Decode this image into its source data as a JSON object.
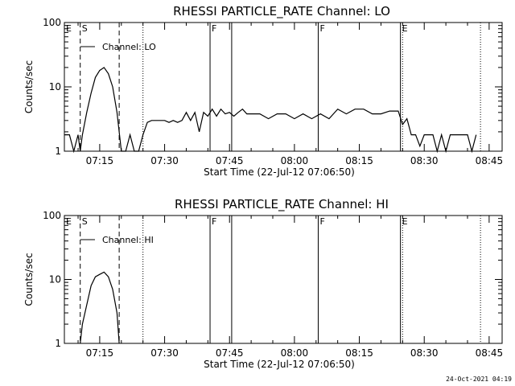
{
  "footer_date": "24-Oct-2021 04:19",
  "chart_data": [
    {
      "type": "line",
      "title": "RHESSI PARTICLE_RATE Channel: LO",
      "xlabel": "Start Time (22-Jul-12 07:06:50)",
      "ylabel": "Counts/sec",
      "yscale": "log",
      "ylim": [
        1,
        100
      ],
      "yticks": [
        "1",
        "10",
        "100"
      ],
      "xlim": [
        "07:06:50",
        "08:48:00"
      ],
      "xticks": [
        "07:15",
        "07:30",
        "07:45",
        "08:00",
        "08:15",
        "08:30",
        "08:45"
      ],
      "legend": "top-left",
      "series": [
        {
          "name": "Channel: LO",
          "x": [
            "07:06:50",
            "07:08:00",
            "07:09:00",
            "07:10:00",
            "07:10:30",
            "07:11:00",
            "07:12:00",
            "07:13:00",
            "07:14:00",
            "07:15:00",
            "07:16:00",
            "07:17:00",
            "07:18:00",
            "07:19:00",
            "07:19:30",
            "07:20:00",
            "07:21:00",
            "07:22:00",
            "07:23:00",
            "07:24:00",
            "07:25:00",
            "07:26:00",
            "07:27:00",
            "07:28:00",
            "07:29:00",
            "07:30:00",
            "07:31:00",
            "07:32:00",
            "07:33:00",
            "07:34:00",
            "07:35:00",
            "07:36:00",
            "07:37:00",
            "07:38:00",
            "07:39:00",
            "07:40:00",
            "07:41:00",
            "07:42:00",
            "07:43:00",
            "07:44:00",
            "07:45:00",
            "07:46:00",
            "07:47:00",
            "07:48:00",
            "07:49:00",
            "07:50:00",
            "07:52:00",
            "07:54:00",
            "07:56:00",
            "07:58:00",
            "08:00:00",
            "08:02:00",
            "08:04:00",
            "08:06:00",
            "08:08:00",
            "08:10:00",
            "08:12:00",
            "08:14:00",
            "08:16:00",
            "08:18:00",
            "08:20:00",
            "08:22:00",
            "08:24:00",
            "08:25:00",
            "08:26:00",
            "08:27:00",
            "08:28:00",
            "08:29:00",
            "08:30:00",
            "08:31:00",
            "08:32:00",
            "08:33:00",
            "08:34:00",
            "08:35:00",
            "08:36:00",
            "08:37:00",
            "08:38:00",
            "08:39:00",
            "08:40:00",
            "08:41:00",
            "08:42:00"
          ],
          "values": [
            1.8,
            1.8,
            1,
            1.8,
            1,
            1.8,
            4,
            8,
            14,
            18,
            20,
            16,
            10,
            4,
            2,
            1,
            1,
            1.8,
            1,
            1,
            1.8,
            2.8,
            3,
            3,
            3,
            3,
            2.8,
            3,
            2.8,
            3,
            4,
            3,
            4,
            2,
            4,
            3.5,
            4.5,
            3.5,
            4.5,
            3.8,
            4,
            3.5,
            4,
            4.5,
            3.8,
            3.8,
            3.8,
            3.2,
            3.8,
            3.8,
            3.2,
            3.8,
            3.2,
            3.8,
            3.2,
            4.5,
            3.8,
            4.5,
            4.5,
            3.8,
            3.8,
            4.2,
            4.2,
            2.6,
            3.2,
            1.8,
            1.8,
            1.2,
            1.8,
            1.8,
            1.8,
            1,
            1.8,
            1,
            1.8,
            1.8,
            1.8,
            1.8,
            1.8,
            1,
            1.8
          ]
        }
      ],
      "markers": [
        {
          "label": "E",
          "time": "07:06:50",
          "style": "none"
        },
        {
          "label": "S",
          "time": "07:10:30",
          "style": "dashed"
        },
        {
          "label": "",
          "time": "07:19:30",
          "style": "dashed"
        },
        {
          "label": "",
          "time": "07:25:00",
          "style": "dotted"
        },
        {
          "label": "F",
          "time": "07:40:30",
          "style": "solid"
        },
        {
          "label": "",
          "time": "07:45:30",
          "style": "solid"
        },
        {
          "label": "F",
          "time": "08:05:30",
          "style": "solid"
        },
        {
          "label": "E",
          "time": "08:24:30",
          "style": "solid"
        },
        {
          "label": "",
          "time": "08:25:00",
          "style": "dotted"
        },
        {
          "label": "",
          "time": "08:43:00",
          "style": "dotted"
        }
      ]
    },
    {
      "type": "line",
      "title": "RHESSI PARTICLE_RATE Channel: HI",
      "xlabel": "Start Time (22-Jul-12 07:06:50)",
      "ylabel": "Counts/sec",
      "yscale": "log",
      "ylim": [
        1,
        100
      ],
      "yticks": [
        "1",
        "10",
        "100"
      ],
      "xlim": [
        "07:06:50",
        "08:48:00"
      ],
      "xticks": [
        "07:15",
        "07:30",
        "07:45",
        "08:00",
        "08:15",
        "08:30",
        "08:45"
      ],
      "legend": "top-left",
      "series": [
        {
          "name": "Channel: HI",
          "x": [
            "07:10:30",
            "07:11:00",
            "07:12:00",
            "07:13:00",
            "07:14:00",
            "07:15:00",
            "07:16:00",
            "07:17:00",
            "07:18:00",
            "07:19:00",
            "07:19:30"
          ],
          "values": [
            1,
            2,
            4,
            8,
            11,
            12,
            13,
            11,
            7,
            3,
            1
          ]
        }
      ],
      "markers": [
        {
          "label": "E",
          "time": "07:06:50",
          "style": "none"
        },
        {
          "label": "S",
          "time": "07:10:30",
          "style": "dashed"
        },
        {
          "label": "",
          "time": "07:19:30",
          "style": "dashed"
        },
        {
          "label": "",
          "time": "07:25:00",
          "style": "dotted"
        },
        {
          "label": "F",
          "time": "07:40:30",
          "style": "solid"
        },
        {
          "label": "",
          "time": "07:45:30",
          "style": "solid"
        },
        {
          "label": "F",
          "time": "08:05:30",
          "style": "solid"
        },
        {
          "label": "E",
          "time": "08:24:30",
          "style": "solid"
        },
        {
          "label": "",
          "time": "08:25:00",
          "style": "dotted"
        },
        {
          "label": "",
          "time": "08:43:00",
          "style": "dotted"
        }
      ]
    }
  ]
}
